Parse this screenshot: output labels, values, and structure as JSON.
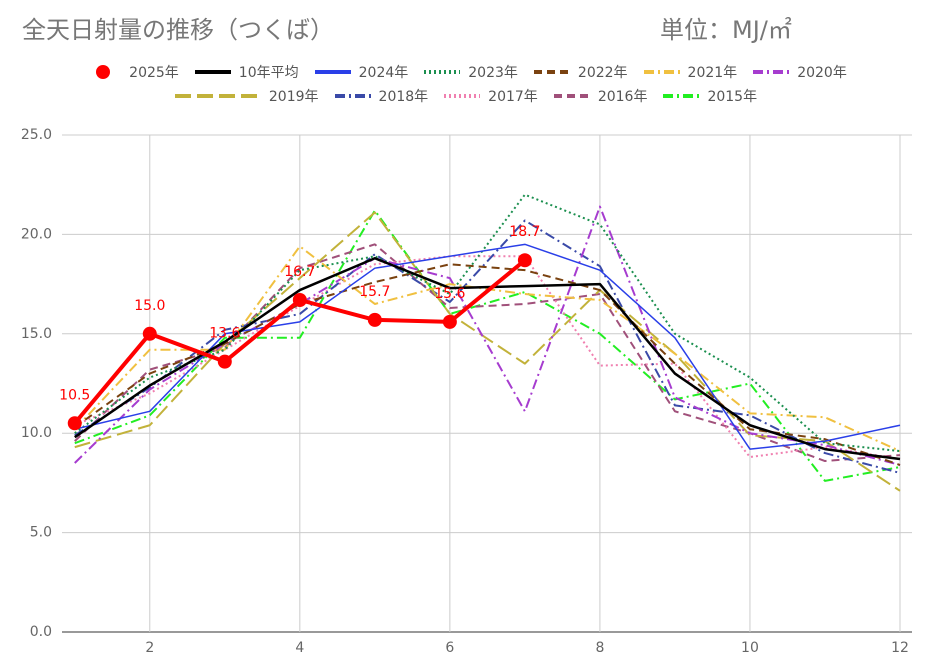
{
  "chart_data": {
    "type": "line",
    "title": "全天日射量の推移（つくば）",
    "subtitle": "単位：MJ/㎡",
    "x": [
      1,
      2,
      3,
      4,
      5,
      6,
      7,
      8,
      9,
      10,
      11,
      12
    ],
    "xlim": [
      0.83,
      12.16
    ],
    "xticks": [
      2,
      4,
      6,
      8,
      10,
      12
    ],
    "ylim": [
      0,
      25
    ],
    "yticks": [
      {
        "value": 0,
        "label": "0.0"
      },
      {
        "value": 5,
        "label": "5.0"
      },
      {
        "value": 10,
        "label": "10.0"
      },
      {
        "value": 15,
        "label": "15.0"
      },
      {
        "value": 20,
        "label": "20.0"
      },
      {
        "value": 25,
        "label": "25.0"
      }
    ],
    "grid": true,
    "series": [
      {
        "name": "2025年",
        "color": "#ff0000",
        "dash": "solid",
        "width": 4,
        "markers": true,
        "values": [
          10.5,
          15.0,
          13.6,
          16.7,
          15.7,
          15.6,
          18.7,
          null,
          null,
          null,
          null,
          null
        ],
        "value_labels": [
          "10.5",
          "15.0",
          "13.6",
          "16.7",
          "15.7",
          "15.6",
          "18.7",
          null,
          null,
          null,
          null,
          null
        ]
      },
      {
        "name": "10年平均",
        "color": "#000000",
        "dash": "solid",
        "width": 2.5,
        "values": [
          9.8,
          12.4,
          14.6,
          17.2,
          18.8,
          17.3,
          17.4,
          17.5,
          13.0,
          10.4,
          9.2,
          8.7
        ]
      },
      {
        "name": "2024年",
        "color": "#2a3fe8",
        "dash": "solid",
        "width": 1.5,
        "values": [
          10.2,
          11.1,
          15.0,
          15.6,
          18.3,
          18.9,
          19.5,
          18.2,
          14.8,
          9.2,
          9.6,
          10.4
        ]
      },
      {
        "name": "2023年",
        "color": "#1b8f4f",
        "dash": "dotted",
        "width": 2,
        "values": [
          10.0,
          12.8,
          14.2,
          18.2,
          18.9,
          17.0,
          22.0,
          20.5,
          15.0,
          12.8,
          9.5,
          9.1
        ]
      },
      {
        "name": "2022年",
        "color": "#7a4210",
        "dash": "dashed",
        "width": 2,
        "values": [
          10.3,
          13.0,
          14.5,
          16.5,
          17.6,
          18.5,
          18.2,
          17.2,
          13.5,
          10.2,
          9.7,
          8.4
        ]
      },
      {
        "name": "2021年",
        "color": "#f0c040",
        "dash": "dashdot",
        "width": 2,
        "values": [
          10.2,
          14.2,
          14.2,
          19.4,
          16.5,
          17.5,
          17.0,
          16.7,
          14.0,
          11.0,
          10.8,
          9.1
        ]
      },
      {
        "name": "2020年",
        "color": "#a63ccf",
        "dash": "dashdot",
        "width": 2,
        "values": [
          8.5,
          12.2,
          14.5,
          16.5,
          18.8,
          17.8,
          11.1,
          21.4,
          11.8,
          10.0,
          9.4,
          8.4
        ]
      },
      {
        "name": "2019年",
        "color": "#c2b23a",
        "dash": "longdash",
        "width": 2,
        "values": [
          9.3,
          10.4,
          14.5,
          17.8,
          21.1,
          16.0,
          13.5,
          17.2,
          14.0,
          9.9,
          9.6,
          7.1
        ]
      },
      {
        "name": "2018年",
        "color": "#3a4aa8",
        "dash": "dashdot",
        "width": 2,
        "values": [
          9.9,
          12.3,
          15.2,
          16.0,
          19.0,
          16.6,
          20.7,
          18.4,
          11.4,
          10.9,
          9.0,
          8.0
        ]
      },
      {
        "name": "2017年",
        "color": "#f080b0",
        "dash": "dotted",
        "width": 2,
        "values": [
          10.4,
          12.0,
          14.2,
          16.4,
          18.5,
          18.9,
          18.9,
          13.4,
          13.5,
          8.8,
          9.3,
          8.7
        ]
      },
      {
        "name": "2016年",
        "color": "#a0507a",
        "dash": "dashed",
        "width": 2,
        "values": [
          9.6,
          13.2,
          14.3,
          18.3,
          19.5,
          16.3,
          16.5,
          17.0,
          11.1,
          10.0,
          8.6,
          8.9
        ]
      },
      {
        "name": "2015年",
        "color": "#22ee22",
        "dash": "dashdot",
        "width": 2,
        "values": [
          9.5,
          10.9,
          14.8,
          14.8,
          21.2,
          16.0,
          17.1,
          15.0,
          11.7,
          12.5,
          7.6,
          8.3
        ]
      }
    ]
  }
}
